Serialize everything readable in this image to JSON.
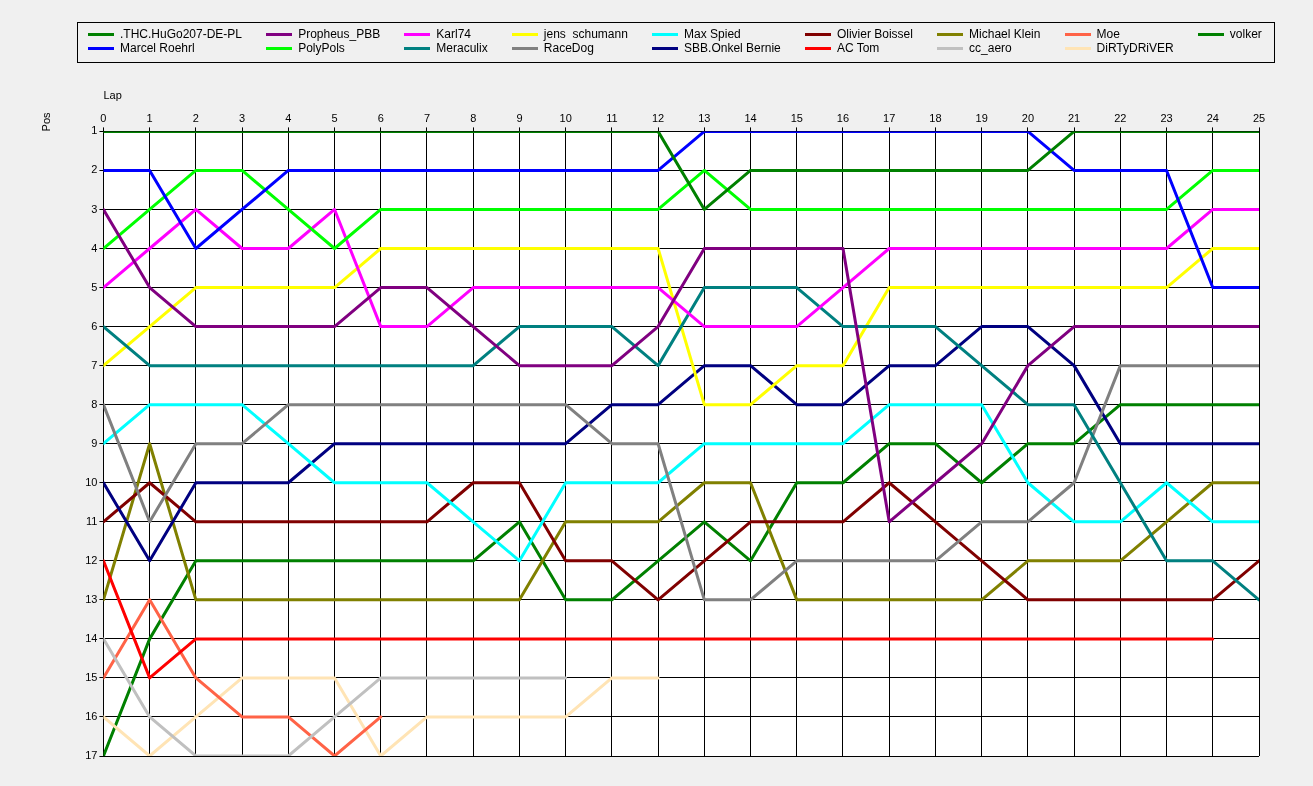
{
  "chart_data": {
    "type": "line",
    "xlabel": "Lap",
    "ylabel": "Pos",
    "x": [
      0,
      1,
      2,
      3,
      4,
      5,
      6,
      7,
      8,
      9,
      10,
      11,
      12,
      13,
      14,
      15,
      16,
      17,
      18,
      19,
      20,
      21,
      22,
      23,
      24,
      25
    ],
    "xlim": [
      0,
      25
    ],
    "xticks": [
      0,
      1,
      2,
      3,
      4,
      5,
      6,
      7,
      8,
      9,
      10,
      11,
      12,
      13,
      14,
      15,
      16,
      17,
      18,
      19,
      20,
      21,
      22,
      23,
      24,
      25
    ],
    "ylim": [
      17,
      1
    ],
    "yticks": [
      1,
      2,
      3,
      4,
      5,
      6,
      7,
      8,
      9,
      10,
      11,
      12,
      13,
      14,
      15,
      16,
      17
    ],
    "grid": true,
    "legend": "top",
    "marker": "none",
    "line_style": "solid",
    "series": [
      {
        "name": ".THC.HuGo207-DE-PL",
        "color": "#008000",
        "values": [
          1,
          1,
          1,
          1,
          1,
          1,
          1,
          1,
          1,
          1,
          1,
          1,
          1,
          3,
          2,
          2,
          2,
          2,
          2,
          2,
          2,
          1,
          1,
          1,
          1,
          1
        ]
      },
      {
        "name": "Marcel Roehrl",
        "color": "#0000ff",
        "values": [
          2,
          2,
          4,
          3,
          2,
          2,
          2,
          2,
          2,
          2,
          2,
          2,
          2,
          1,
          1,
          1,
          1,
          1,
          1,
          1,
          1,
          2,
          2,
          2,
          5,
          5
        ]
      },
      {
        "name": "Propheus_PBB",
        "color": "#800080",
        "values": [
          3,
          5,
          6,
          6,
          6,
          6,
          5,
          5,
          6,
          7,
          7,
          7,
          6,
          4,
          4,
          4,
          4,
          11,
          10,
          9,
          7,
          6,
          6,
          6,
          6,
          6
        ]
      },
      {
        "name": "PolyPols",
        "color": "#00ff00",
        "values": [
          4,
          3,
          2,
          2,
          3,
          4,
          3,
          3,
          3,
          3,
          3,
          3,
          3,
          2,
          3,
          3,
          3,
          3,
          3,
          3,
          3,
          3,
          3,
          3,
          2,
          2
        ]
      },
      {
        "name": "Karl74",
        "color": "#ff00ff",
        "values": [
          5,
          4,
          3,
          4,
          4,
          3,
          6,
          6,
          5,
          5,
          5,
          5,
          5,
          6,
          6,
          6,
          5,
          4,
          4,
          4,
          4,
          4,
          4,
          4,
          3,
          3
        ]
      },
      {
        "name": "Meraculix",
        "color": "#008080",
        "values": [
          6,
          7,
          7,
          7,
          7,
          7,
          7,
          7,
          7,
          6,
          6,
          6,
          7,
          5,
          5,
          5,
          6,
          6,
          6,
          7,
          8,
          8,
          10,
          12,
          12,
          13
        ]
      },
      {
        "name": "jens  schumann",
        "color": "#ffff00",
        "values": [
          7,
          6,
          5,
          5,
          5,
          5,
          4,
          4,
          4,
          4,
          4,
          4,
          4,
          8,
          8,
          7,
          7,
          5,
          5,
          5,
          5,
          5,
          5,
          5,
          4,
          4
        ]
      },
      {
        "name": "RaceDog",
        "color": "#808080",
        "values": [
          8,
          11,
          9,
          9,
          8,
          8,
          8,
          8,
          8,
          8,
          8,
          9,
          9,
          13,
          13,
          12,
          12,
          12,
          12,
          11,
          11,
          10,
          7,
          7,
          7,
          7
        ]
      },
      {
        "name": "Max Spied",
        "color": "#00ffff",
        "values": [
          9,
          8,
          8,
          8,
          9,
          10,
          10,
          10,
          11,
          12,
          10,
          10,
          10,
          9,
          9,
          9,
          9,
          8,
          8,
          8,
          10,
          11,
          11,
          10,
          11,
          11
        ]
      },
      {
        "name": "SBB.Onkel Bernie",
        "color": "#000080",
        "values": [
          10,
          12,
          10,
          10,
          10,
          9,
          9,
          9,
          9,
          9,
          9,
          8,
          8,
          7,
          7,
          8,
          8,
          7,
          7,
          6,
          6,
          7,
          9,
          9,
          9,
          9
        ]
      },
      {
        "name": "Olivier Boissel",
        "color": "#800000",
        "values": [
          11,
          10,
          11,
          11,
          11,
          11,
          11,
          11,
          10,
          10,
          12,
          12,
          13,
          12,
          11,
          11,
          11,
          10,
          11,
          12,
          13,
          13,
          13,
          13,
          13,
          12
        ]
      },
      {
        "name": "AC Tom",
        "color": "#ff0000",
        "values": [
          12,
          15,
          14,
          14,
          14,
          14,
          14,
          14,
          14,
          14,
          14,
          14,
          14,
          14,
          14,
          14,
          14,
          14,
          14,
          14,
          14,
          14,
          14,
          14,
          14,
          null
        ]
      },
      {
        "name": "Michael Klein",
        "color": "#808000",
        "values": [
          13,
          9,
          13,
          13,
          13,
          13,
          13,
          13,
          13,
          13,
          11,
          11,
          11,
          10,
          10,
          13,
          13,
          13,
          13,
          13,
          12,
          12,
          12,
          11,
          10,
          10
        ]
      },
      {
        "name": "cc_aero",
        "color": "#c0c0c0",
        "values": [
          14,
          16,
          17,
          17,
          17,
          16,
          15,
          15,
          15,
          15,
          15,
          null,
          null,
          null,
          null,
          null,
          null,
          null,
          null,
          null,
          null,
          null,
          null,
          null,
          null,
          null
        ]
      },
      {
        "name": "Moe",
        "color": "#ff6347",
        "values": [
          15,
          13,
          15,
          16,
          16,
          17,
          16,
          null,
          null,
          null,
          null,
          null,
          null,
          null,
          null,
          null,
          null,
          null,
          null,
          null,
          null,
          null,
          null,
          null,
          null,
          null
        ]
      },
      {
        "name": "DiRTyDRiVER",
        "color": "#ffe4b5",
        "values": [
          16,
          17,
          16,
          15,
          15,
          15,
          17,
          16,
          16,
          16,
          16,
          15,
          15,
          null,
          null,
          null,
          null,
          null,
          null,
          null,
          null,
          null,
          null,
          null,
          null,
          null
        ]
      },
      {
        "name": "volker",
        "color": "#008000",
        "values": [
          17,
          14,
          12,
          12,
          12,
          12,
          12,
          12,
          12,
          11,
          13,
          13,
          12,
          11,
          12,
          10,
          10,
          9,
          9,
          10,
          9,
          9,
          8,
          8,
          8,
          8
        ]
      }
    ]
  }
}
